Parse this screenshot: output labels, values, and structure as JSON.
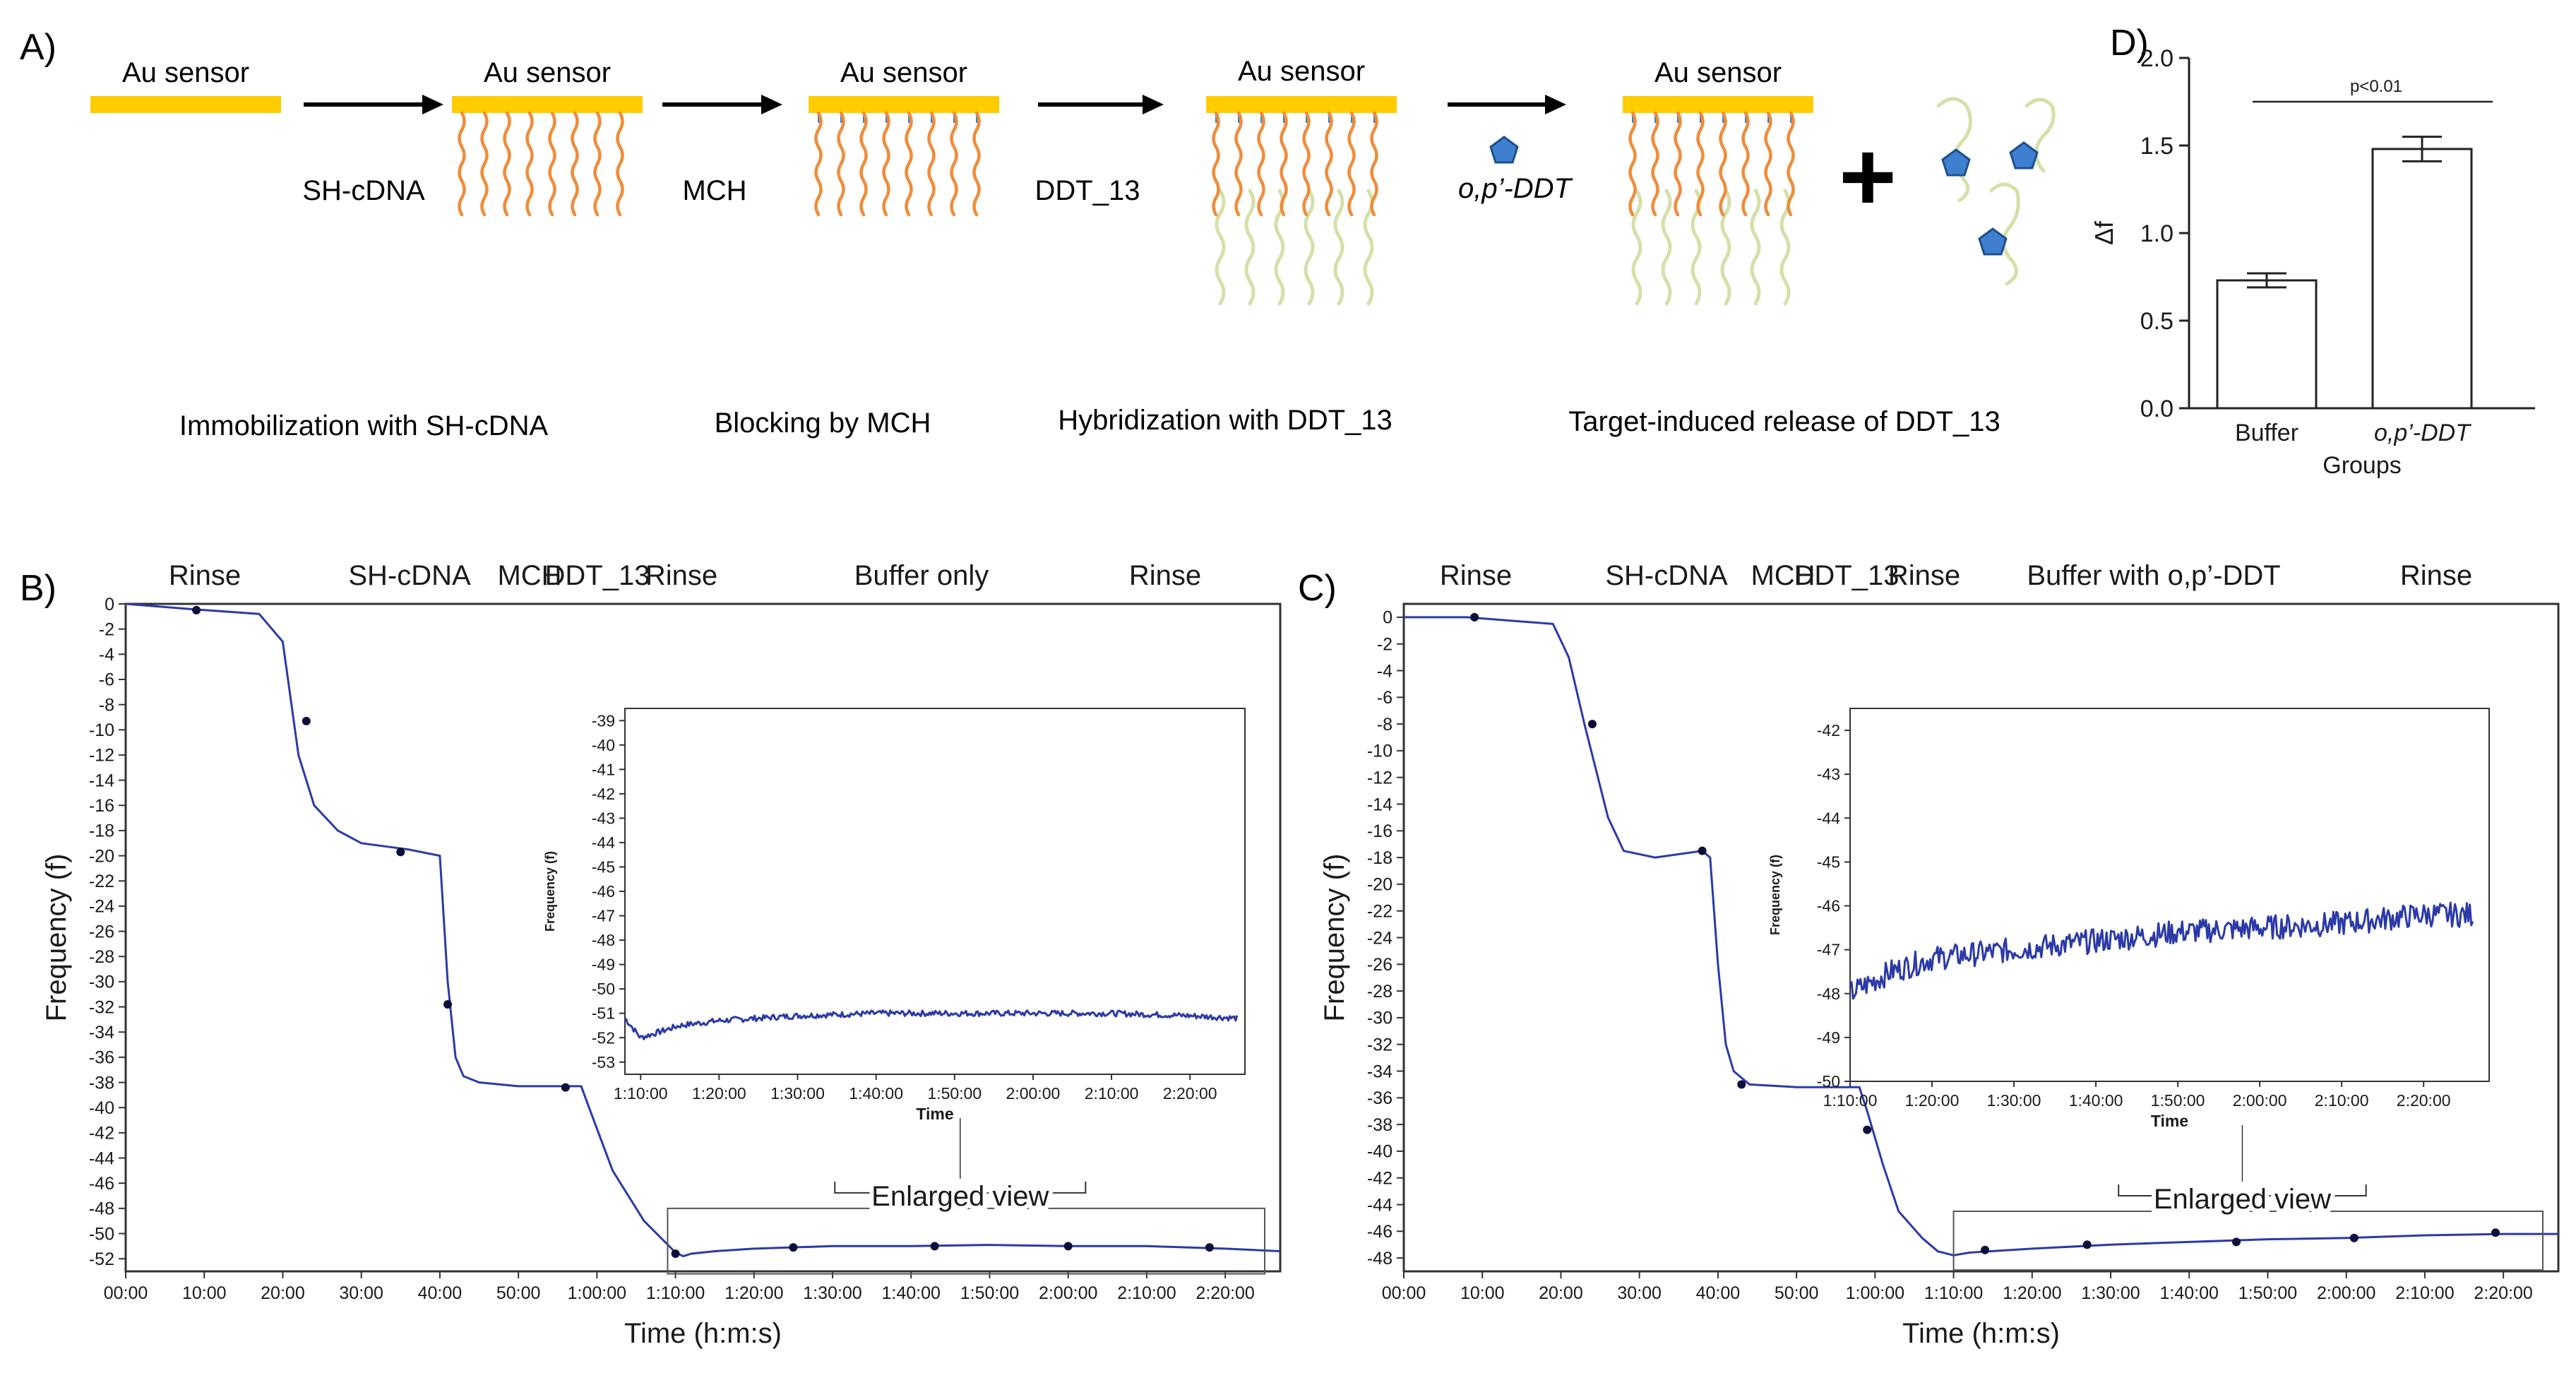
{
  "panel_a": {
    "letter": "A)",
    "sensor_label": "Au sensor",
    "step_labels": [
      "SH-cDNA",
      "MCH",
      "DDT_13",
      "o,p’-DDT"
    ],
    "plus": "+",
    "captions": [
      "Immobilization with SH-cDNA",
      "Blocking by MCH",
      "Hybridization with DDT_13",
      "Target-induced release of DDT_13"
    ],
    "colors": {
      "gold": "#ffcc00",
      "cdna": "#f08c3a",
      "mch": "#3a7fcf",
      "ddt13": "#d4e0a8",
      "target": "#3f7fd0"
    }
  },
  "panel_b": {
    "letter": "B)",
    "phases": [
      "Rinse",
      "SH-cDNA",
      "MCH",
      "DDT_13",
      "Rinse",
      "Buffer only",
      "Rinse"
    ],
    "enlarged_label": "Enlarged view"
  },
  "panel_c": {
    "letter": "C)",
    "phases": [
      "Rinse",
      "SH-cDNA",
      "MCH",
      "DDT_13",
      "Rinse",
      "Buffer with o,p’-DDT",
      "Rinse"
    ],
    "enlarged_label": "Enlarged view"
  },
  "panel_d": {
    "letter": "D)"
  },
  "chart_data": [
    {
      "id": "B-main",
      "type": "line",
      "title": "",
      "xlabel": "Time (h:m:s)",
      "ylabel": "Frequency (f)",
      "xlim_min": [
        0,
        147
      ],
      "ylim": [
        -53,
        0
      ],
      "ytick_step": 2,
      "xticks_min": [
        0,
        10,
        20,
        30,
        40,
        50,
        60,
        70,
        80,
        90,
        100,
        110,
        120,
        130,
        140
      ],
      "xtick_labels": [
        "00:00",
        "10:00",
        "20:00",
        "30:00",
        "40:00",
        "50:00",
        "1:00:00",
        "1:10:00",
        "1:20:00",
        "1:30:00",
        "1:40:00",
        "1:50:00",
        "2:00:00",
        "2:10:00",
        "2:20:00"
      ],
      "series": [
        {
          "name": "frequency",
          "x_min": [
            0,
            8,
            17,
            20,
            22,
            24,
            27,
            30,
            36,
            40,
            41,
            42,
            43,
            45,
            50,
            58,
            59,
            62,
            66,
            70,
            71,
            72,
            75,
            80,
            90,
            100,
            110,
            120,
            130,
            140,
            147
          ],
          "y": [
            0,
            -0.4,
            -0.8,
            -3,
            -12,
            -16,
            -18,
            -19,
            -19.5,
            -20,
            -30,
            -36,
            -37.5,
            -38,
            -38.3,
            -38.3,
            -40,
            -45,
            -49,
            -51.5,
            -51.8,
            -51.6,
            -51.4,
            -51.2,
            -51.0,
            -51.0,
            -50.9,
            -51.0,
            -51.0,
            -51.2,
            -51.4
          ]
        }
      ],
      "markers": [
        {
          "x_min": 9,
          "y": -0.5
        },
        {
          "x_min": 23,
          "y": -9.3
        },
        {
          "x_min": 35,
          "y": -19.7
        },
        {
          "x_min": 41,
          "y": -31.8
        },
        {
          "x_min": 56,
          "y": -38.4
        },
        {
          "x_min": 70,
          "y": -51.6
        },
        {
          "x_min": 85,
          "y": -51.1
        },
        {
          "x_min": 103,
          "y": -51.0
        },
        {
          "x_min": 120,
          "y": -51.0
        },
        {
          "x_min": 138,
          "y": -51.1
        }
      ]
    },
    {
      "id": "B-inset",
      "type": "line",
      "xlabel": "Time",
      "ylabel": "Frequency (f)",
      "xlim_min": [
        68,
        147
      ],
      "ylim": [
        -53.5,
        -38.5
      ],
      "yticks": [
        -39,
        -40,
        -41,
        -42,
        -43,
        -44,
        -45,
        -46,
        -47,
        -48,
        -49,
        -50,
        -51,
        -52,
        -53
      ],
      "xticks_min": [
        70,
        80,
        90,
        100,
        110,
        120,
        130,
        140
      ],
      "xtick_labels": [
        "1:10:00",
        "1:20:00",
        "1:30:00",
        "1:40:00",
        "1:50:00",
        "2:00:00",
        "2:10:00",
        "2:20:00"
      ],
      "series": [
        {
          "name": "frequency",
          "x_min": [
            68,
            69,
            70,
            72,
            75,
            80,
            90,
            100,
            110,
            120,
            130,
            140,
            146
          ],
          "y": [
            -51.2,
            -51.6,
            -52,
            -51.8,
            -51.5,
            -51.3,
            -51.1,
            -51.0,
            -51.0,
            -51.0,
            -51.0,
            -51.1,
            -51.2
          ]
        }
      ],
      "noise": 0.12
    },
    {
      "id": "C-main",
      "type": "line",
      "xlabel": "Time (h:m:s)",
      "ylabel": "Frequency (f)",
      "xlim_min": [
        0,
        147
      ],
      "ylim": [
        -49,
        1
      ],
      "ytick_step": 2,
      "xticks_min": [
        0,
        10,
        20,
        30,
        40,
        50,
        60,
        70,
        80,
        90,
        100,
        110,
        120,
        130,
        140
      ],
      "xtick_labels": [
        "00:00",
        "10:00",
        "20:00",
        "30:00",
        "40:00",
        "50:00",
        "1:00:00",
        "1:10:00",
        "1:20:00",
        "1:30:00",
        "1:40:00",
        "1:50:00",
        "2:00:00",
        "2:10:00",
        "2:20:00"
      ],
      "series": [
        {
          "name": "frequency",
          "x_min": [
            0,
            8,
            19,
            21,
            23,
            26,
            28,
            32,
            38,
            39,
            40,
            41,
            42,
            44,
            50,
            58,
            59,
            61,
            63,
            66,
            68,
            70,
            72,
            80,
            90,
            100,
            110,
            120,
            130,
            140,
            147
          ],
          "y": [
            0,
            0,
            -0.5,
            -3,
            -8,
            -15,
            -17.5,
            -18,
            -17.5,
            -18,
            -26,
            -32,
            -34,
            -35,
            -35.2,
            -35.2,
            -37,
            -41,
            -44.5,
            -46.5,
            -47.5,
            -47.8,
            -47.6,
            -47.3,
            -47.0,
            -46.8,
            -46.6,
            -46.5,
            -46.3,
            -46.2,
            -46.2
          ]
        }
      ],
      "markers": [
        {
          "x_min": 9,
          "y": 0
        },
        {
          "x_min": 24,
          "y": -8
        },
        {
          "x_min": 38,
          "y": -17.5
        },
        {
          "x_min": 43,
          "y": -35
        },
        {
          "x_min": 59,
          "y": -38.4
        },
        {
          "x_min": 74,
          "y": -47.4
        },
        {
          "x_min": 87,
          "y": -47
        },
        {
          "x_min": 106,
          "y": -46.8
        },
        {
          "x_min": 121,
          "y": -46.5
        },
        {
          "x_min": 139,
          "y": -46.1
        }
      ]
    },
    {
      "id": "C-inset",
      "type": "line",
      "xlabel": "Time",
      "ylabel": "Frequency (f)",
      "xlim_min": [
        70,
        148
      ],
      "ylim": [
        -50,
        -41.5
      ],
      "yticks": [
        -42,
        -43,
        -44,
        -45,
        -46,
        -47,
        -48,
        -49,
        -50
      ],
      "xticks_min": [
        70,
        80,
        90,
        100,
        110,
        120,
        130,
        140
      ],
      "xtick_labels": [
        "1:10:00",
        "1:20:00",
        "1:30:00",
        "1:40:00",
        "1:50:00",
        "2:00:00",
        "2:10:00",
        "2:20:00"
      ],
      "series": [
        {
          "name": "frequency",
          "x_min": [
            70,
            72,
            75,
            80,
            85,
            90,
            100,
            110,
            120,
            130,
            140,
            146
          ],
          "y": [
            -48.0,
            -47.8,
            -47.5,
            -47.2,
            -47.1,
            -47.0,
            -46.8,
            -46.6,
            -46.5,
            -46.4,
            -46.2,
            -46.2
          ]
        }
      ],
      "noise": 0.28
    },
    {
      "id": "D",
      "type": "bar",
      "categories": [
        "Buffer",
        "o,p’-DDT"
      ],
      "values": [
        0.73,
        1.48
      ],
      "errors": [
        0.04,
        0.07
      ],
      "xlabel": "Groups",
      "ylabel": "Δf",
      "ylim": [
        0,
        2.0
      ],
      "yticks": [
        0.0,
        0.5,
        1.0,
        1.5,
        2.0
      ],
      "ytick_labels": [
        "0.0",
        "0.5",
        "1.0",
        "1.5",
        "2.0"
      ],
      "annotation": "p<0.01"
    }
  ]
}
